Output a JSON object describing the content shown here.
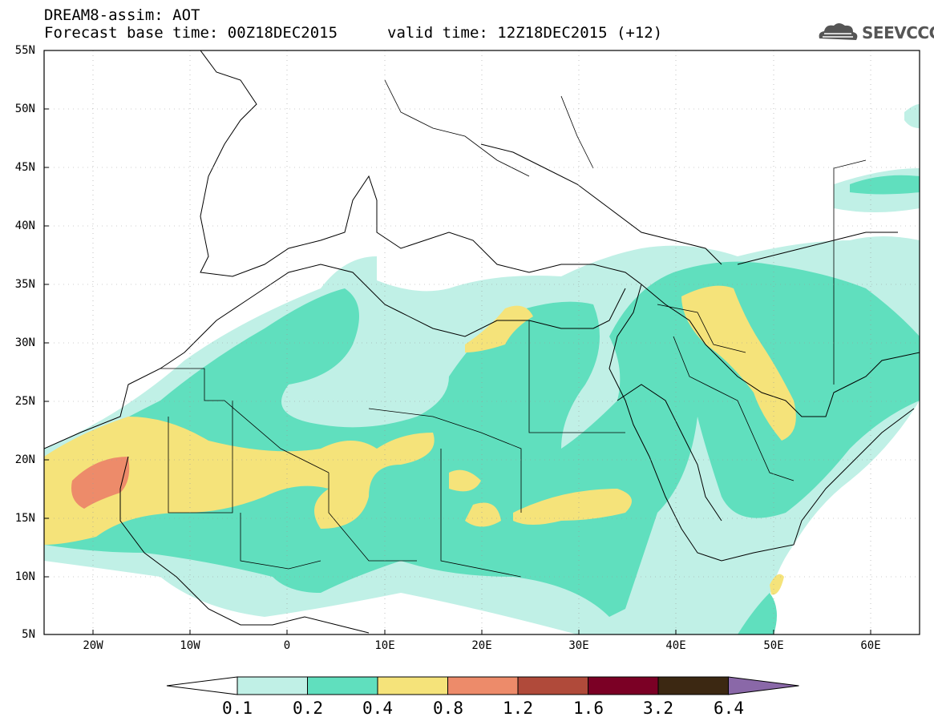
{
  "header": {
    "line1": "DREAM8-assim: AOT",
    "line2": "Forecast base time: 00Z18DEC2015",
    "line3": "valid time: 12Z18DEC2015 (+12)",
    "logo_text": "SEEVCCC"
  },
  "map": {
    "lat_labels": [
      "55N",
      "50N",
      "45N",
      "40N",
      "35N",
      "30N",
      "25N",
      "20N",
      "15N",
      "10N",
      "5N"
    ],
    "lon_labels": [
      "20W",
      "10W",
      "0",
      "10E",
      "20E",
      "30E",
      "40E",
      "50E",
      "60E"
    ],
    "extent": {
      "lon_min": -25,
      "lon_max": 65,
      "lat_min": 5,
      "lat_max": 55
    }
  },
  "colorbar": {
    "levels": [
      "0.1",
      "0.2",
      "0.4",
      "0.8",
      "1.2",
      "1.6",
      "3.2",
      "6.4"
    ],
    "colors": [
      "#ffffff",
      "#c0f0e6",
      "#60dfbe",
      "#f5e37a",
      "#ed8b6a",
      "#b04a3a",
      "#7b0025",
      "#3c2812",
      "#8a68a8"
    ]
  }
}
